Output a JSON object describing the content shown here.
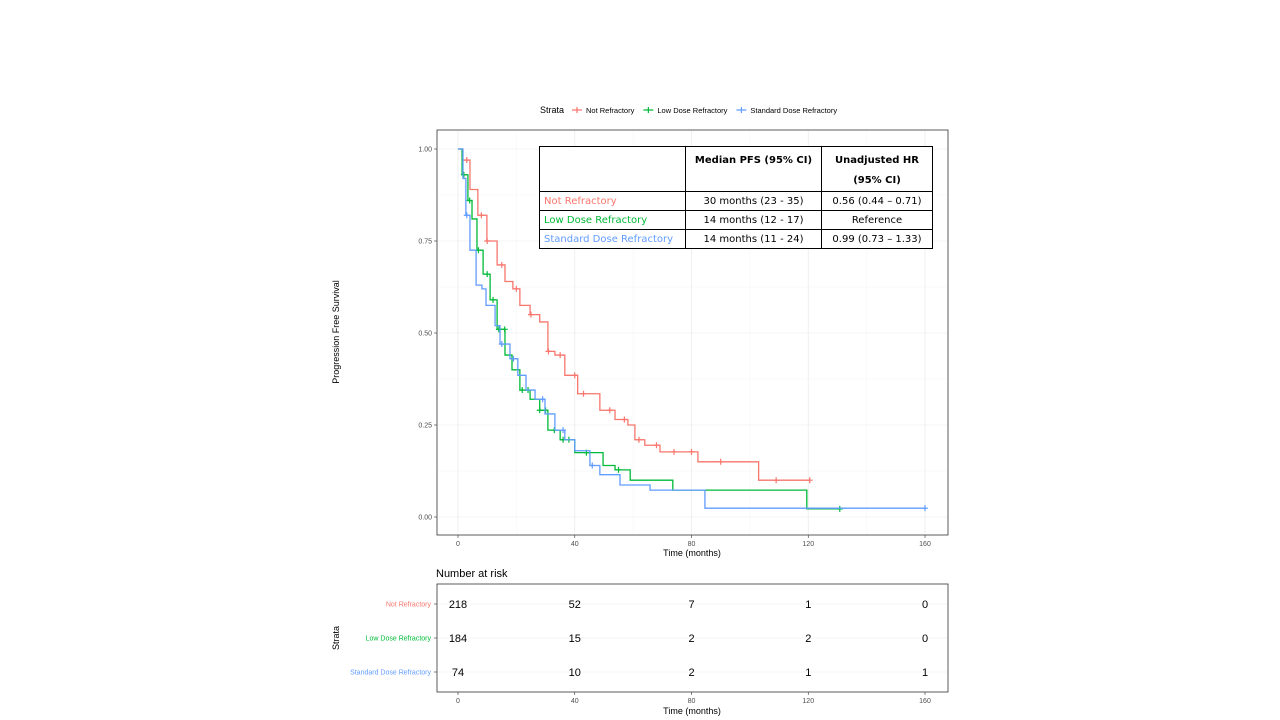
{
  "legend": {
    "title": "Strata",
    "items": [
      "Not Refractory",
      "Low Dose Refractory",
      "Standard Dose Refractory"
    ]
  },
  "colors": {
    "Not Refractory": "#f8766d",
    "Low Dose Refractory": "#00ba38",
    "Standard Dose Refractory": "#619cff"
  },
  "stats_table": {
    "headers": [
      "",
      "Median PFS (95% CI)",
      "Unadjusted HR (95% CI)"
    ],
    "header_hr_line1": "Unadjusted HR",
    "header_hr_line2": "(95% CI)",
    "rows": [
      {
        "group": "Not Refractory",
        "median": "30 months (23 - 35)",
        "hr": "0.56 (0.44 – 0.71)"
      },
      {
        "group": "Low Dose Refractory",
        "median": "14 months (12 - 17)",
        "hr": "Reference"
      },
      {
        "group": "Standard Dose Refractory",
        "median": "14 months (11 - 24)",
        "hr": "0.99 (0.73 – 1.33)"
      }
    ]
  },
  "risk_table": {
    "title": "Number at risk",
    "ylabel": "Strata",
    "xlabel": "Time (months)",
    "times": [
      0,
      40,
      80,
      120,
      160
    ],
    "rows": [
      {
        "group": "Not Refractory",
        "counts": [
          218,
          52,
          7,
          1,
          0
        ]
      },
      {
        "group": "Low Dose Refractory",
        "counts": [
          184,
          15,
          2,
          2,
          0
        ]
      },
      {
        "group": "Standard Dose Refractory",
        "counts": [
          74,
          10,
          2,
          1,
          1
        ]
      }
    ]
  },
  "chart_data": {
    "type": "line",
    "step": true,
    "xlabel": "Time (months)",
    "ylabel": "Progression Free Survival",
    "xlim": [
      0,
      160
    ],
    "ylim": [
      0,
      1
    ],
    "xticks": [
      0,
      40,
      80,
      120,
      160
    ],
    "yticks": [
      "0.00",
      "0.25",
      "0.50",
      "0.75",
      "1.00"
    ],
    "grid": true,
    "legend_position": "top",
    "series": [
      {
        "name": "Not Refractory",
        "t": [
          0,
          1.4,
          4.1,
          6.8,
          9.9,
          13.4,
          16.1,
          18.8,
          21.2,
          24.7,
          28,
          30.8,
          33.2,
          36.6,
          41,
          48.6,
          53.8,
          58.2,
          60.6,
          64,
          69.2,
          82.2,
          103,
          120.5
        ],
        "s": [
          1,
          0.97,
          0.89,
          0.82,
          0.75,
          0.685,
          0.64,
          0.62,
          0.575,
          0.55,
          0.53,
          0.45,
          0.44,
          0.385,
          0.335,
          0.29,
          0.265,
          0.25,
          0.21,
          0.195,
          0.177,
          0.15,
          0.1,
          0.1
        ],
        "censored": [
          3,
          8,
          10,
          15,
          20,
          25,
          31,
          35,
          40,
          43,
          52,
          57,
          62,
          68,
          74,
          80,
          90,
          109,
          120.5
        ]
      },
      {
        "name": "Low Dose Refractory",
        "t": [
          0,
          1.4,
          3.4,
          4.8,
          6.5,
          8.6,
          11,
          13.4,
          16.1,
          18.5,
          21.2,
          24.7,
          28,
          30.8,
          35,
          40,
          49.7,
          53.8,
          59,
          73.6,
          119.5,
          130.8
        ],
        "s": [
          1,
          0.93,
          0.86,
          0.81,
          0.725,
          0.66,
          0.59,
          0.51,
          0.44,
          0.4,
          0.345,
          0.32,
          0.29,
          0.236,
          0.21,
          0.175,
          0.14,
          0.128,
          0.1,
          0.073,
          0.022,
          0.022
        ],
        "censored": [
          2,
          4,
          7,
          10,
          12,
          14,
          16,
          22,
          24,
          28,
          30,
          33,
          36,
          38,
          44,
          55,
          130.8
        ]
      },
      {
        "name": "Standard Dose Refractory",
        "t": [
          0,
          1.7,
          2.7,
          4.1,
          6.2,
          8.2,
          9.6,
          12.7,
          14.4,
          17.8,
          20.5,
          23.3,
          26.4,
          29.8,
          33.2,
          36.6,
          40,
          45.2,
          48.6,
          55.5,
          65.8,
          84.6,
          160
        ],
        "s": [
          1,
          0.92,
          0.82,
          0.725,
          0.63,
          0.62,
          0.575,
          0.52,
          0.47,
          0.43,
          0.385,
          0.345,
          0.32,
          0.28,
          0.236,
          0.21,
          0.18,
          0.14,
          0.115,
          0.087,
          0.073,
          0.024,
          0.024
        ],
        "censored": [
          3,
          15,
          19,
          29,
          36,
          46,
          160
        ]
      }
    ]
  }
}
